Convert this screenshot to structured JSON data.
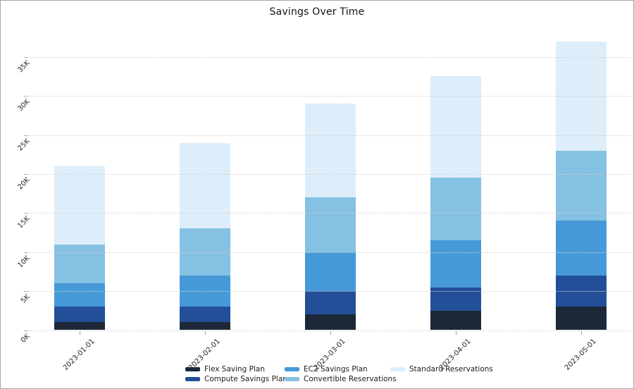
{
  "title": "Savings Over Time",
  "chart_data": {
    "type": "bar",
    "stacked": true,
    "title": "Savings Over Time",
    "xlabel": "",
    "ylabel": "",
    "grid": "dotted-horizontal",
    "legend_position": "bottom",
    "categories": [
      "2023-01-01",
      "2023-02-01",
      "2023-03-01",
      "2023-04-01",
      "2023-05-01"
    ],
    "series": [
      {
        "name": "Flex Saving Plan",
        "color": "#1c2838",
        "values": [
          1000,
          1000,
          2000,
          2500,
          3000
        ]
      },
      {
        "name": "Compute Savings Plan",
        "color": "#234f99",
        "values": [
          2000,
          2000,
          3000,
          3000,
          4000
        ]
      },
      {
        "name": "EC2 Savings Plan",
        "color": "#4699d8",
        "values": [
          3000,
          4000,
          5000,
          6000,
          7000
        ]
      },
      {
        "name": "Convertible Reservations",
        "color": "#85c1e3",
        "values": [
          5000,
          6000,
          7000,
          8000,
          9000
        ]
      },
      {
        "name": "Standard Reservations",
        "color": "#ddeefa",
        "values": [
          10000,
          11000,
          12000,
          13000,
          14000
        ]
      }
    ],
    "totals": [
      21000,
      24000,
      29000,
      32500,
      37000
    ],
    "ytick_values": [
      0,
      5000,
      10000,
      15000,
      20000,
      25000,
      30000,
      35000
    ],
    "ytick_labels": [
      "0K",
      "5K",
      "10K",
      "15K",
      "20K",
      "25K",
      "30K",
      "35K"
    ],
    "ylim": [
      0,
      38500
    ]
  }
}
